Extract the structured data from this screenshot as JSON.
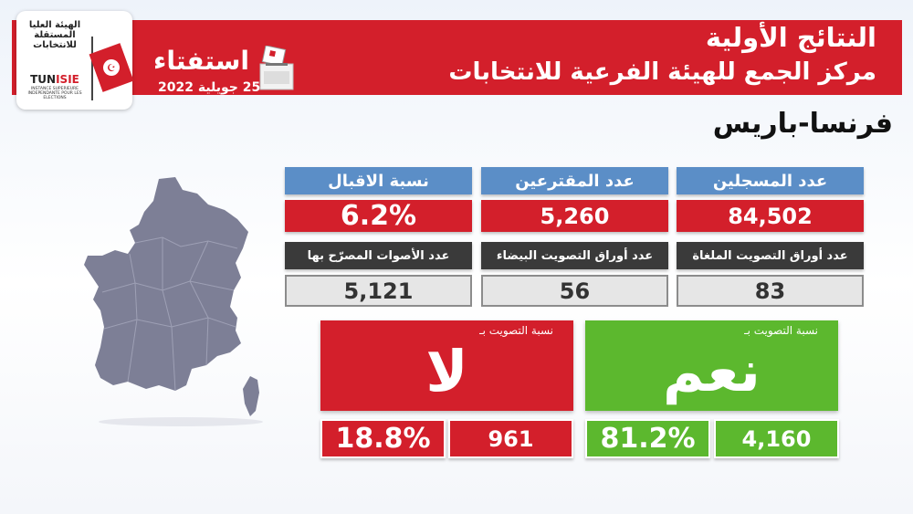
{
  "header": {
    "title": "النتائج الأولية",
    "subtitle": "مركز الجمع للهيئة الفرعية للانتخابات",
    "referendum_word": "استفتاء",
    "referendum_date": "25 جويلية 2022",
    "logo": {
      "arabic_name": "الهيئة العليا المستقلة للانتخابات",
      "acronym_black": "TUN",
      "acronym_red": "ISIE",
      "french_name": "INSTANCE SUPERIEURE INDEPENDANTE POUR LES ELECTIONS"
    }
  },
  "location": "فرنسا-باريس",
  "stats_top": [
    {
      "label": "عدد المسجلين",
      "value": "84,502"
    },
    {
      "label": "عدد المقترعين",
      "value": "5,260"
    },
    {
      "label": "نسبة الاقبال",
      "value": "6.2%"
    }
  ],
  "stats_bottom": [
    {
      "label": "عدد أوراق التصويت الملغاة",
      "value": "83"
    },
    {
      "label": "عدد أوراق التصويت البيضاء",
      "value": "56"
    },
    {
      "label": "عدد الأصوات المصرّح بها",
      "value": "5,121"
    }
  ],
  "yes": {
    "label": "نسبة التصويت بـ",
    "word": "نعم",
    "percent": "81.2%",
    "count": "4,160",
    "color": "#5cb82e"
  },
  "no": {
    "label": "نسبة التصويت بـ",
    "word": "لا",
    "percent": "18.8%",
    "count": "961",
    "color": "#d31f2b"
  },
  "colors": {
    "banner": "#d31f2b",
    "header_blue": "#5b8ec7",
    "header_dark": "#3a3a3a",
    "value_gray": "#e6e6e6",
    "map": "#7d7f96"
  },
  "icons": [
    "ballot-box-icon",
    "tunisia-flag-icon",
    "france-map"
  ]
}
